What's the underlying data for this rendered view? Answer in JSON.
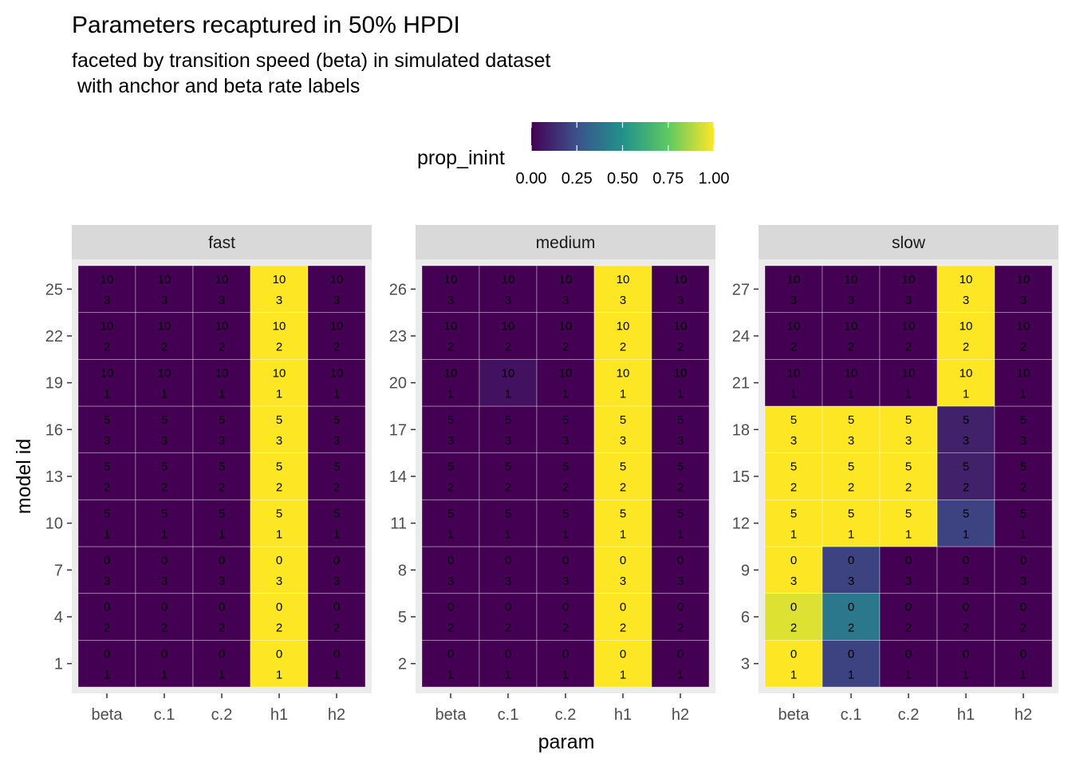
{
  "chart_data": {
    "type": "heatmap",
    "title": "Parameters recaptured in 50% HPDI",
    "subtitle_lines": [
      "faceted by transition speed (beta) in simulated dataset",
      " with anchor and beta rate labels"
    ],
    "xlabel": "param",
    "ylabel": "model id",
    "legend": {
      "title": "prop_inint",
      "position": "top",
      "range": [
        0,
        1
      ],
      "ticks": [
        0,
        0.25,
        0.5,
        0.75,
        1
      ],
      "tick_labels": [
        "0.00",
        "0.25",
        "0.50",
        "0.75",
        "1.00"
      ],
      "colors": [
        "#440154",
        "#3b528b",
        "#21918c",
        "#5ec962",
        "#fde725"
      ]
    },
    "params": [
      "beta",
      "c.1",
      "c.2",
      "h1",
      "h2"
    ],
    "anchors": [
      0,
      0,
      0,
      5,
      5,
      5,
      10,
      10,
      10
    ],
    "beta_rates": [
      1,
      2,
      3,
      1,
      2,
      3,
      1,
      2,
      3
    ],
    "facets": [
      {
        "label": "fast",
        "model_ids": [
          1,
          4,
          7,
          10,
          13,
          16,
          19,
          22,
          25
        ],
        "values": [
          [
            0,
            0,
            0,
            1,
            0
          ],
          [
            0,
            0,
            0,
            1,
            0
          ],
          [
            0,
            0,
            0,
            1,
            0
          ],
          [
            0,
            0,
            0,
            1,
            0
          ],
          [
            0,
            0,
            0,
            1,
            0
          ],
          [
            0,
            0,
            0,
            1,
            0
          ],
          [
            0,
            0,
            0,
            1,
            0
          ],
          [
            0,
            0,
            0,
            1,
            0
          ],
          [
            0,
            0,
            0,
            1,
            0
          ]
        ]
      },
      {
        "label": "medium",
        "model_ids": [
          2,
          5,
          8,
          11,
          14,
          17,
          20,
          23,
          26
        ],
        "values": [
          [
            0,
            0,
            0,
            1,
            0
          ],
          [
            0,
            0,
            0,
            1,
            0
          ],
          [
            0,
            0,
            0,
            1,
            0
          ],
          [
            0,
            0,
            0,
            1,
            0
          ],
          [
            0,
            0,
            0,
            1,
            0
          ],
          [
            0,
            0,
            0,
            1,
            0
          ],
          [
            0,
            0.05,
            0,
            1,
            0
          ],
          [
            0,
            0,
            0,
            1,
            0
          ],
          [
            0,
            0,
            0,
            1,
            0
          ]
        ]
      },
      {
        "label": "slow",
        "model_ids": [
          3,
          6,
          9,
          12,
          15,
          18,
          21,
          24,
          27
        ],
        "values": [
          [
            1,
            0.2,
            0,
            0,
            0
          ],
          [
            0.95,
            0.4,
            0,
            0,
            0
          ],
          [
            1,
            0.2,
            0,
            0,
            0
          ],
          [
            1,
            1,
            1,
            0.2,
            0
          ],
          [
            1,
            1,
            1,
            0.1,
            0
          ],
          [
            1,
            1,
            1,
            0.1,
            0
          ],
          [
            0,
            0,
            0,
            1,
            0
          ],
          [
            0,
            0,
            0,
            1,
            0
          ],
          [
            0,
            0,
            0,
            1,
            0
          ]
        ]
      }
    ]
  }
}
